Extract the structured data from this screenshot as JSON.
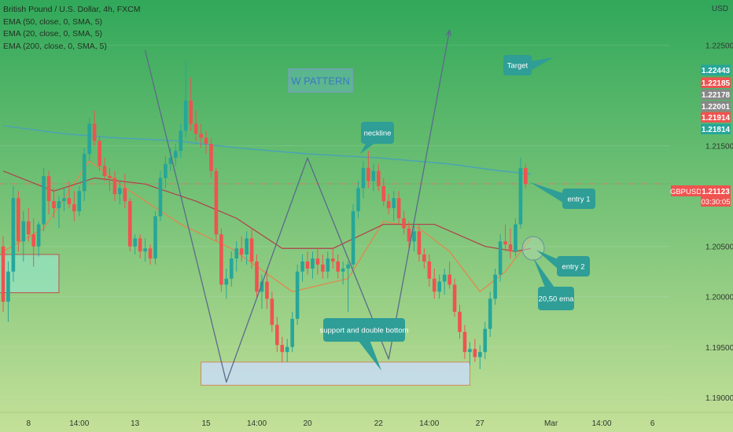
{
  "legend": {
    "title": "British Pound / U.S. Dollar, 4h, FXCM",
    "studies": [
      "EMA (50, close, 0, SMA, 5)",
      "EMA (20, close, 0, SMA, 5)",
      "EMA (200, close, 0, SMA, 5)"
    ]
  },
  "currency": "USD",
  "symbol": "GBPUSD",
  "countdown": "03:30:05",
  "colors": {
    "bull": "#26a69a",
    "bear": "#ef5350",
    "ema20": "#e8834a",
    "ema50": "#b0404a",
    "ema200": "#4aa3b5",
    "callout": "#2e9e96",
    "pattern_box": "#7aa0c8"
  },
  "chart_data": {
    "type": "candlestick",
    "title": "British Pound / U.S. Dollar, 4h, FXCM",
    "y_axis": {
      "position": "right",
      "ticks": [
        1.19,
        1.195,
        1.2,
        1.205,
        1.215,
        1.225
      ],
      "tick_labels": [
        "1.19000",
        "1.19500",
        "1.20000",
        "1.20500",
        "1.21500",
        "1.22500"
      ],
      "ylim": [
        1.1885,
        1.2295
      ]
    },
    "x_axis": {
      "tick_labels": [
        "8",
        "14:00",
        "13",
        "15",
        "14:00",
        "20",
        "22",
        "14:00",
        "27",
        "Mar",
        "14:00",
        "6"
      ]
    },
    "price_badges": [
      {
        "value": "1.22443",
        "color": "#26a69a"
      },
      {
        "value": "1.22185",
        "color": "#ef5350"
      },
      {
        "value": "1.22178",
        "color": "#888888"
      },
      {
        "value": "1.22001",
        "color": "#888888"
      },
      {
        "value": "1.21914",
        "color": "#ef5350"
      },
      {
        "value": "1.21814",
        "color": "#26a69a"
      }
    ],
    "last_price": "1.21123",
    "candles": [
      [
        1.205,
        1.206,
        1.1985,
        1.1995
      ],
      [
        1.1995,
        1.2035,
        1.1975,
        1.2025
      ],
      [
        1.2025,
        1.211,
        1.2015,
        1.2098
      ],
      [
        1.2098,
        1.2105,
        1.2045,
        1.2055
      ],
      [
        1.2055,
        1.2085,
        1.2035,
        1.2075
      ],
      [
        1.2075,
        1.2088,
        1.2055,
        1.2062
      ],
      [
        1.2062,
        1.2078,
        1.203,
        1.205
      ],
      [
        1.205,
        1.2075,
        1.204,
        1.2072
      ],
      [
        1.2072,
        1.2128,
        1.2065,
        1.212
      ],
      [
        1.212,
        1.2125,
        1.2082,
        1.2095
      ],
      [
        1.2095,
        1.2108,
        1.2078,
        1.2088
      ],
      [
        1.2088,
        1.21,
        1.2068,
        1.2095
      ],
      [
        1.2095,
        1.2108,
        1.2085,
        1.2098
      ],
      [
        1.2098,
        1.2115,
        1.2088,
        1.2092
      ],
      [
        1.2092,
        1.2105,
        1.2075,
        1.2085
      ],
      [
        1.2085,
        1.211,
        1.208,
        1.2105
      ],
      [
        1.2105,
        1.2148,
        1.2095,
        1.2142
      ],
      [
        1.2142,
        1.2178,
        1.2135,
        1.2172
      ],
      [
        1.2172,
        1.2185,
        1.215,
        1.2155
      ],
      [
        1.2155,
        1.216,
        1.2125,
        1.213
      ],
      [
        1.213,
        1.2138,
        1.2115,
        1.212
      ],
      [
        1.212,
        1.2128,
        1.2105,
        1.2118
      ],
      [
        1.2118,
        1.2125,
        1.2095,
        1.2102
      ],
      [
        1.2102,
        1.2115,
        1.2092,
        1.2108
      ],
      [
        1.2108,
        1.2122,
        1.2088,
        1.2095
      ],
      [
        1.2095,
        1.2098,
        1.2045,
        1.205
      ],
      [
        1.205,
        1.2062,
        1.2042,
        1.2058
      ],
      [
        1.2058,
        1.2062,
        1.2038,
        1.2045
      ],
      [
        1.2045,
        1.2058,
        1.2035,
        1.2048
      ],
      [
        1.2048,
        1.2052,
        1.2032,
        1.2038
      ],
      [
        1.2038,
        1.2085,
        1.2032,
        1.208
      ],
      [
        1.208,
        1.2125,
        1.2075,
        1.2118
      ],
      [
        1.2118,
        1.214,
        1.2108,
        1.2132
      ],
      [
        1.2132,
        1.2148,
        1.2125,
        1.2138
      ],
      [
        1.2138,
        1.2152,
        1.213,
        1.2145
      ],
      [
        1.2145,
        1.2172,
        1.2138,
        1.2165
      ],
      [
        1.2165,
        1.2235,
        1.2158,
        1.2195
      ],
      [
        1.2195,
        1.2218,
        1.2165,
        1.2172
      ],
      [
        1.2172,
        1.2185,
        1.2155,
        1.2162
      ],
      [
        1.2162,
        1.2172,
        1.2148,
        1.2158
      ],
      [
        1.2158,
        1.2165,
        1.2142,
        1.2152
      ],
      [
        1.2152,
        1.2158,
        1.2118,
        1.2125
      ],
      [
        1.2125,
        1.2128,
        1.2055,
        1.2062
      ],
      [
        1.2062,
        1.2068,
        1.2005,
        1.2012
      ],
      [
        1.2012,
        1.2028,
        1.1998,
        1.2018
      ],
      [
        1.2018,
        1.2045,
        1.201,
        1.2038
      ],
      [
        1.2038,
        1.2055,
        1.2025,
        1.2048
      ],
      [
        1.2048,
        1.206,
        1.2035,
        1.2042
      ],
      [
        1.2042,
        1.2065,
        1.2032,
        1.2058
      ],
      [
        1.2058,
        1.2068,
        1.2028,
        1.2035
      ],
      [
        1.2035,
        1.2042,
        1.1998,
        1.2005
      ],
      [
        1.2005,
        1.2022,
        1.1988,
        1.2015
      ],
      [
        1.2015,
        1.2028,
        1.1988,
        1.1998
      ],
      [
        1.1998,
        1.2005,
        1.1965,
        1.1972
      ],
      [
        1.1972,
        1.198,
        1.1945,
        1.1952
      ],
      [
        1.1952,
        1.196,
        1.1935,
        1.1945
      ],
      [
        1.1945,
        1.1958,
        1.1935,
        1.195
      ],
      [
        1.195,
        1.1985,
        1.1945,
        1.1978
      ],
      [
        1.1978,
        1.2032,
        1.1972,
        1.2025
      ],
      [
        1.2025,
        1.2042,
        1.2015,
        1.2035
      ],
      [
        1.2035,
        1.2045,
        1.2022,
        1.2028
      ],
      [
        1.2028,
        1.2045,
        1.2018,
        1.2038
      ],
      [
        1.2038,
        1.2048,
        1.2022,
        1.2032
      ],
      [
        1.2032,
        1.2042,
        1.2018,
        1.2025
      ],
      [
        1.2025,
        1.2045,
        1.2018,
        1.2038
      ],
      [
        1.2038,
        1.2048,
        1.2028,
        1.2035
      ],
      [
        1.2035,
        1.2042,
        1.2018,
        1.2025
      ],
      [
        1.2025,
        1.2035,
        1.2012,
        1.2028
      ],
      [
        1.2028,
        1.2035,
        1.1985,
        1.2032
      ],
      [
        1.2032,
        1.2092,
        1.2028,
        1.2085
      ],
      [
        1.2085,
        1.2115,
        1.2078,
        1.2108
      ],
      [
        1.2108,
        1.2135,
        1.2098,
        1.2128
      ],
      [
        1.2128,
        1.2145,
        1.2108,
        1.2115
      ],
      [
        1.2115,
        1.2132,
        1.2105,
        1.2125
      ],
      [
        1.2125,
        1.2132,
        1.2105,
        1.211
      ],
      [
        1.211,
        1.2118,
        1.209,
        1.2095
      ],
      [
        1.2095,
        1.2102,
        1.2082,
        1.2088
      ],
      [
        1.2088,
        1.2105,
        1.2075,
        1.2098
      ],
      [
        1.2098,
        1.2105,
        1.2072,
        1.2078
      ],
      [
        1.2078,
        1.2085,
        1.2062,
        1.2068
      ],
      [
        1.2068,
        1.2075,
        1.2048,
        1.2055
      ],
      [
        1.2055,
        1.2072,
        1.2045,
        1.2065
      ],
      [
        1.2065,
        1.2072,
        1.2035,
        1.2042
      ],
      [
        1.2042,
        1.2048,
        1.2028,
        1.2035
      ],
      [
        1.2035,
        1.2042,
        1.201,
        1.2018
      ],
      [
        1.2018,
        1.2028,
        1.1998,
        1.2005
      ],
      [
        1.2005,
        1.2022,
        1.1998,
        1.2015
      ],
      [
        1.2015,
        1.2028,
        1.2002,
        1.2022
      ],
      [
        1.2022,
        1.2035,
        1.2008,
        1.2012
      ],
      [
        1.2012,
        1.2018,
        1.198,
        1.1985
      ],
      [
        1.1985,
        1.1992,
        1.1958,
        1.1965
      ],
      [
        1.1965,
        1.1972,
        1.1938,
        1.1945
      ],
      [
        1.1945,
        1.1955,
        1.1932,
        1.1948
      ],
      [
        1.1948,
        1.1958,
        1.1935,
        1.194
      ],
      [
        1.194,
        1.1952,
        1.1928,
        1.1945
      ],
      [
        1.1945,
        1.1975,
        1.1938,
        1.1968
      ],
      [
        1.1968,
        1.2005,
        1.196,
        1.1998
      ],
      [
        1.1998,
        1.2028,
        1.1992,
        1.2022
      ],
      [
        1.2022,
        1.2062,
        1.2015,
        1.2055
      ],
      [
        1.2055,
        1.2072,
        1.2045,
        1.2052
      ],
      [
        1.2052,
        1.2068,
        1.2038,
        1.2045
      ],
      [
        1.2045,
        1.2078,
        1.204,
        1.2072
      ],
      [
        1.2072,
        1.2138,
        1.2068,
        1.2128
      ],
      [
        1.2128,
        1.2132,
        1.2108,
        1.2112
      ]
    ],
    "series": [
      {
        "name": "EMA (20, close, 0, SMA, 5)",
        "points": [
          [
            0,
            1.2045
          ],
          [
            8,
            1.2068
          ],
          [
            17,
            1.2135
          ],
          [
            25,
            1.2105
          ],
          [
            35,
            1.2072
          ],
          [
            45,
            1.2048
          ],
          [
            57,
            1.2005
          ],
          [
            68,
            1.2018
          ],
          [
            75,
            1.2075
          ],
          [
            82,
            1.2068
          ],
          [
            88,
            1.2045
          ],
          [
            94,
            1.2005
          ],
          [
            99,
            1.2025
          ],
          [
            104,
            1.2058
          ]
        ]
      },
      {
        "name": "EMA (50, close, 0, SMA, 5)",
        "points": [
          [
            0,
            1.2125
          ],
          [
            10,
            1.2105
          ],
          [
            18,
            1.2118
          ],
          [
            28,
            1.2112
          ],
          [
            38,
            1.2095
          ],
          [
            46,
            1.2078
          ],
          [
            55,
            1.2048
          ],
          [
            65,
            1.2048
          ],
          [
            75,
            1.2072
          ],
          [
            85,
            1.2072
          ],
          [
            95,
            1.205
          ],
          [
            101,
            1.2045
          ],
          [
            104,
            1.2048
          ]
        ]
      },
      {
        "name": "EMA (200, close, 0, SMA, 5)",
        "points": [
          [
            0,
            1.217
          ],
          [
            12,
            1.2162
          ],
          [
            22,
            1.2158
          ],
          [
            34,
            1.2155
          ],
          [
            46,
            1.2148
          ],
          [
            60,
            1.2142
          ],
          [
            74,
            1.2138
          ],
          [
            88,
            1.2132
          ],
          [
            98,
            1.2125
          ],
          [
            104,
            1.2122
          ]
        ]
      }
    ],
    "pattern": {
      "points": [
        [
          28,
          1.2245
        ],
        [
          44,
          1.1915
        ],
        [
          60,
          1.2138
        ],
        [
          76,
          1.1938
        ],
        [
          88,
          1.2265
        ]
      ]
    },
    "zones": [
      {
        "x1": -1.5,
        "x2": 11,
        "y1": 1.2042,
        "y2": 1.2004
      },
      {
        "x1": 39,
        "x2": 92,
        "y1": 1.1935,
        "y2": 1.1912
      }
    ],
    "annotations": {
      "title_box": "W PATTERN",
      "target": "Target",
      "neckline": "neckline",
      "support": "support and double bottom",
      "entry1": "entry 1",
      "entry2": "entry 2",
      "ema_note": "20,50 ema"
    }
  }
}
